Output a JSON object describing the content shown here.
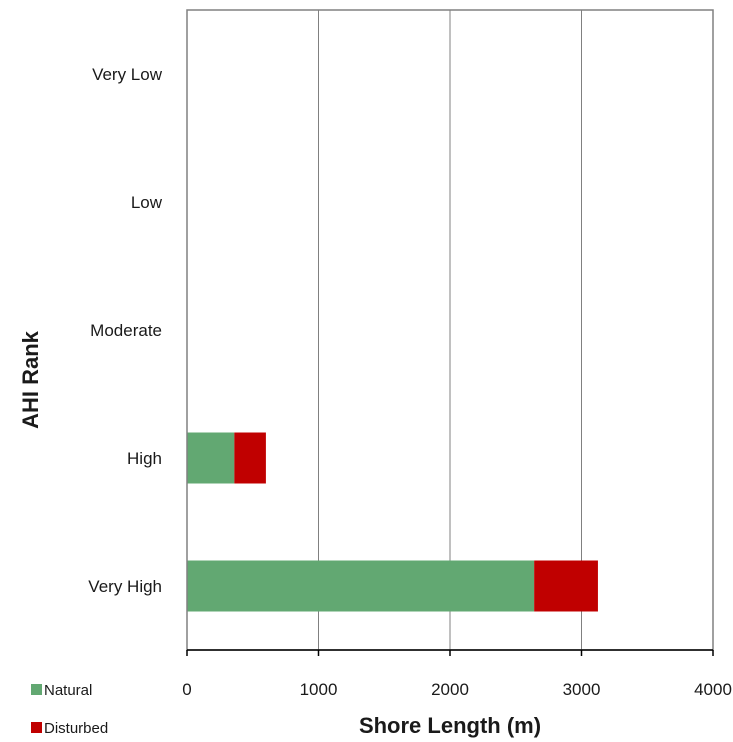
{
  "chart_data": {
    "type": "bar",
    "orientation": "horizontal",
    "stacked": true,
    "categories": [
      "Very Low",
      "Low",
      "Moderate",
      "High",
      "Very High"
    ],
    "series": [
      {
        "name": "Natural",
        "color": "#62a872",
        "values": [
          0,
          0,
          0,
          360,
          2640
        ]
      },
      {
        "name": "Disturbed",
        "color": "#c00000",
        "values": [
          0,
          0,
          0,
          240,
          485
        ]
      }
    ],
    "xlabel": "Shore Length (m)",
    "ylabel": "AHI Rank",
    "xlim": [
      0,
      4000
    ],
    "xticks": [
      "0",
      "1000",
      "2000",
      "3000",
      "4000"
    ],
    "grid": "vertical",
    "legend_position": "bottom-left"
  }
}
